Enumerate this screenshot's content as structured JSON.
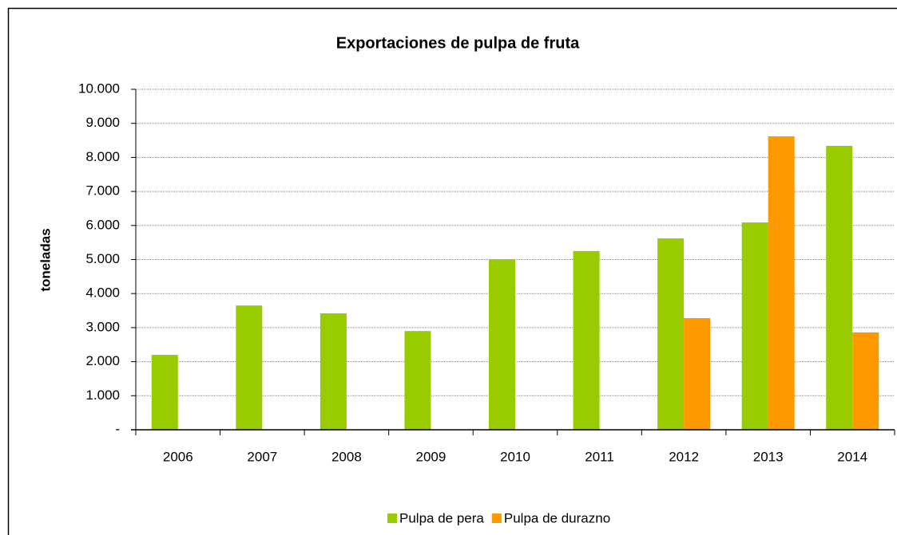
{
  "chart_data": {
    "type": "bar",
    "title": "Exportaciones de pulpa de fruta",
    "y_label": "toneladas",
    "categories": [
      "2006",
      "2007",
      "2008",
      "2009",
      "2010",
      "2011",
      "2012",
      "2013",
      "2014"
    ],
    "series": [
      {
        "name": "Pulpa de pera",
        "color": "#99cc00",
        "values": [
          2200,
          3650,
          3420,
          2900,
          5010,
          5250,
          5620,
          6090,
          8340
        ]
      },
      {
        "name": "Pulpa de durazno",
        "color": "#ff9900",
        "values": [
          null,
          null,
          null,
          null,
          null,
          null,
          3280,
          8620,
          2860
        ]
      }
    ],
    "ylim": [
      0,
      10000
    ],
    "yticks": [
      {
        "value": 0,
        "label": "-"
      },
      {
        "value": 1000,
        "label": "1.000"
      },
      {
        "value": 2000,
        "label": "2.000"
      },
      {
        "value": 3000,
        "label": "3.000"
      },
      {
        "value": 4000,
        "label": "4.000"
      },
      {
        "value": 5000,
        "label": "5.000"
      },
      {
        "value": 6000,
        "label": "6.000"
      },
      {
        "value": 7000,
        "label": "7.000"
      },
      {
        "value": 8000,
        "label": "8.000"
      },
      {
        "value": 9000,
        "label": "9.000"
      },
      {
        "value": 10000,
        "label": "10.000"
      }
    ],
    "grid": true,
    "legend": "bottom"
  }
}
